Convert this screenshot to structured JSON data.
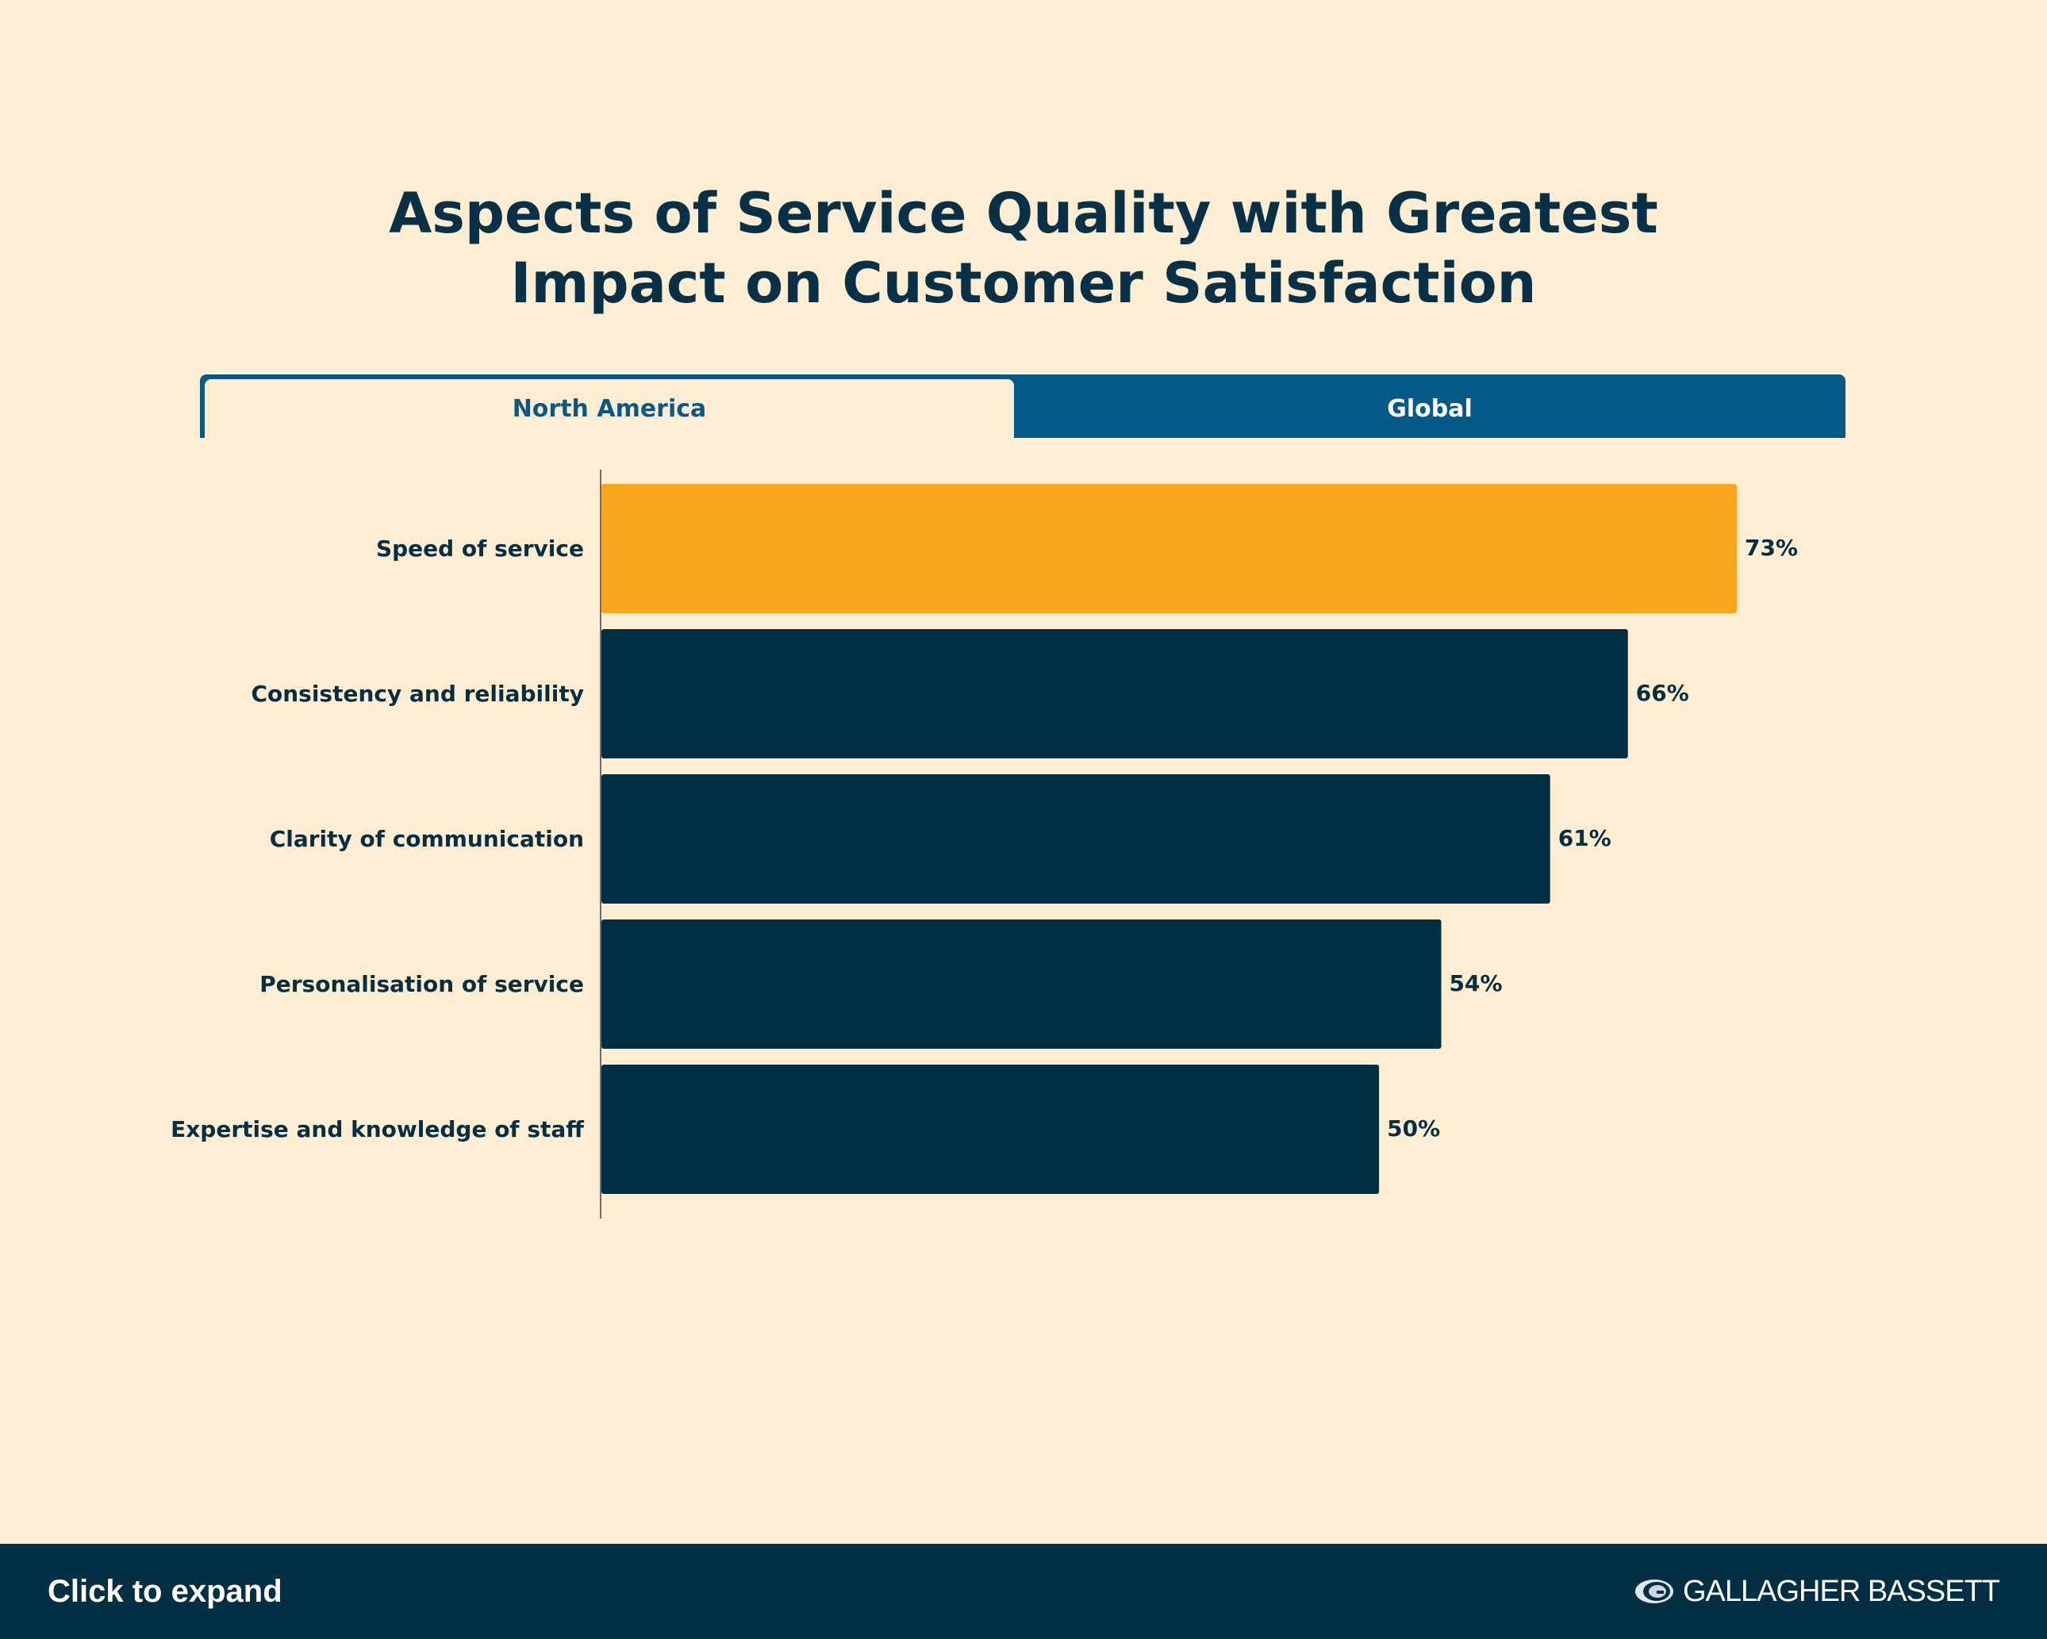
{
  "title_line1": "Aspects of Service Quality with Greatest",
  "title_line2": "Impact on Customer Satisfaction",
  "tabs": [
    {
      "label": "North America",
      "active": true
    },
    {
      "label": "Global",
      "active": false
    }
  ],
  "chart_data": {
    "type": "bar",
    "orientation": "horizontal",
    "title": "Aspects of Service Quality with Greatest Impact on Customer Satisfaction",
    "categories": [
      "Speed of service",
      "Consistency and reliability",
      "Clarity of communication",
      "Personalisation of service",
      "Expertise and knowledge of staff"
    ],
    "values": [
      73,
      66,
      61,
      54,
      50
    ],
    "value_labels": [
      "73%",
      "66%",
      "61%",
      "54%",
      "50%"
    ],
    "unit": "%",
    "highlight_index": 0,
    "highlight_color": "#f8a71c",
    "bar_color": "#032f45",
    "xlim": [
      0,
      100
    ],
    "grid": false,
    "legend": "none"
  },
  "footer": {
    "expand_label": "Click to expand",
    "brand_name": "GALLAGHER BASSETT",
    "brand_icon": "g-globe-logo"
  },
  "colors": {
    "background": "#fdeed3",
    "title": "#083046",
    "tab_bar": "#045a87",
    "footer": "#032f45"
  }
}
